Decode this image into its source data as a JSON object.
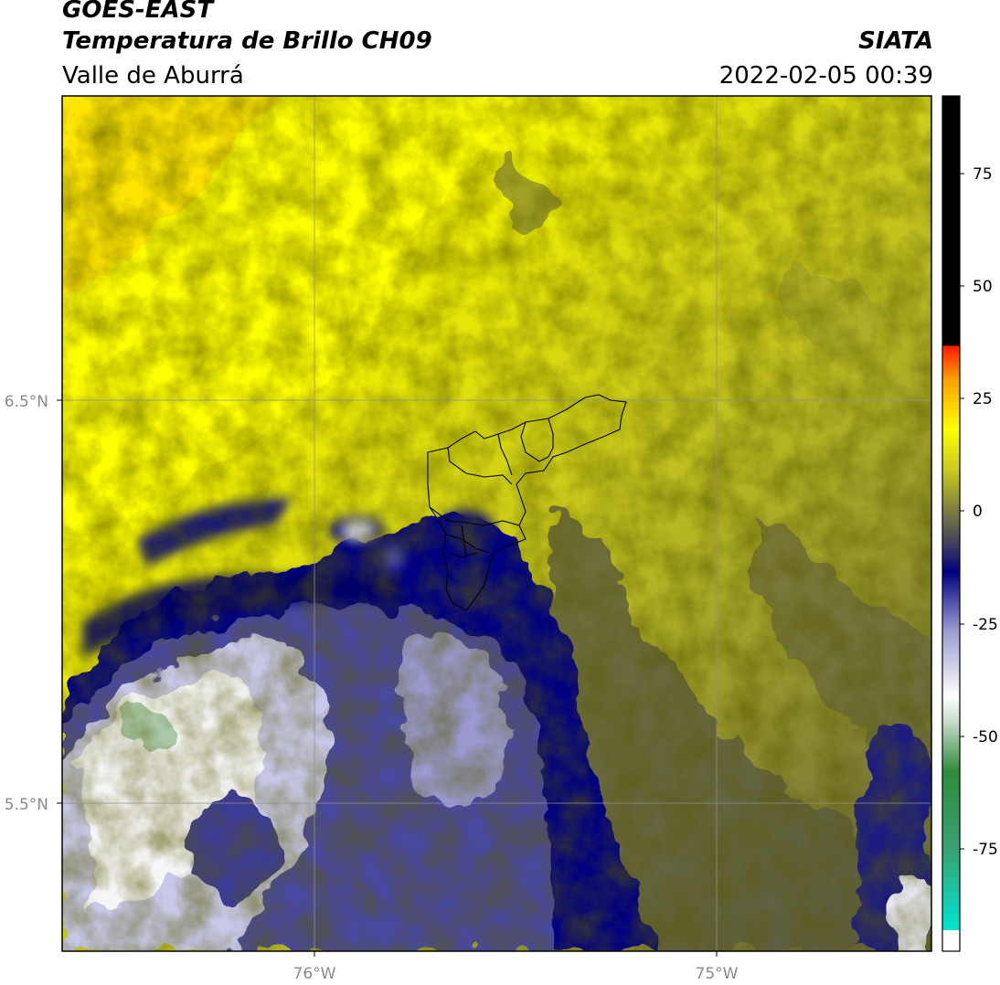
{
  "header": {
    "title_line1": "GOES-EAST",
    "title_line2": "Temperatura de Brillo CH09",
    "brand": "SIATA",
    "region": "Valle de Aburrá",
    "timestamp": "2022-02-05 00:39"
  },
  "map": {
    "lat_ticks": [
      "6.5°N",
      "5.5°N"
    ],
    "lon_ticks": [
      "76°W",
      "75°W"
    ],
    "gridlines": true,
    "overlay": "Valle de Aburrá municipal boundaries"
  },
  "colorbar": {
    "ticks": [
      "75",
      "50",
      "25",
      "0",
      "-25",
      "-50",
      "-75"
    ],
    "colors": {
      "black": "#000000",
      "red": "#ff1a00",
      "orange": "#ff9900",
      "yellow": "#ffff00",
      "olive": "#6b6b35",
      "navy": "#000080",
      "lavender": "#b8b8e0",
      "white": "#ffffff",
      "green": "#2e8b3a",
      "cyan": "#00e5d0"
    }
  },
  "colors": {
    "cloud_deep": "#000080",
    "cloud_mid": "#4a4aa0",
    "cloud_light": "#c8c8e8",
    "cloud_white": "#f6f6f8",
    "clear_warm": "#ffff00",
    "clear_mid": "#c8c820",
    "clear_dark": "#6e6e3c"
  }
}
